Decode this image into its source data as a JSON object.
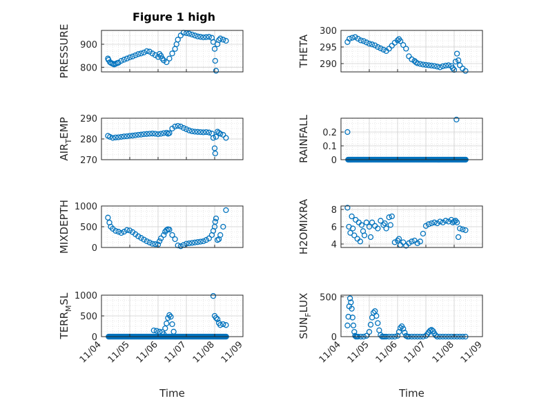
{
  "figure": {
    "title": "Figure 1 high",
    "marker_color": "#0072BD",
    "grid": "on (major + minor dotted)"
  },
  "chart_data": [
    {
      "type": "scatter",
      "title": "Figure 1 high",
      "ylabel": "PRESSURE",
      "ylim": [
        780,
        960
      ],
      "yticks": [
        800,
        900
      ],
      "xlim": [
        0,
        5
      ],
      "xticks_visible": false,
      "x": [
        0.23,
        0.25,
        0.3,
        0.35,
        0.4,
        0.45,
        0.5,
        0.55,
        0.6,
        0.7,
        0.8,
        0.9,
        1.0,
        1.1,
        1.2,
        1.3,
        1.4,
        1.5,
        1.6,
        1.7,
        1.8,
        1.9,
        2.0,
        2.05,
        2.1,
        2.15,
        2.2,
        2.3,
        2.4,
        2.5,
        2.6,
        2.65,
        2.7,
        2.8,
        2.9,
        3.0,
        3.1,
        3.2,
        3.3,
        3.4,
        3.5,
        3.6,
        3.7,
        3.8,
        3.9,
        3.95,
        4.0,
        4.02,
        4.05,
        4.1,
        4.15,
        4.2,
        4.3,
        4.4
      ],
      "y": [
        838,
        832,
        822,
        818,
        815,
        812,
        815,
        818,
        820,
        828,
        833,
        838,
        843,
        847,
        852,
        857,
        860,
        864,
        870,
        868,
        860,
        853,
        845,
        858,
        850,
        838,
        830,
        822,
        838,
        860,
        880,
        900,
        920,
        938,
        950,
        948,
        946,
        942,
        938,
        934,
        932,
        930,
        931,
        932,
        928,
        910,
        880,
        828,
        785,
        900,
        918,
        925,
        920,
        915
      ]
    },
    {
      "type": "scatter",
      "ylabel": "THETA",
      "ylim": [
        287.5,
        300
      ],
      "yticks": [
        290,
        295,
        300
      ],
      "xlim": [
        0,
        5
      ],
      "xticks_visible": false,
      "x": [
        0.23,
        0.3,
        0.4,
        0.5,
        0.6,
        0.7,
        0.8,
        0.9,
        1.0,
        1.1,
        1.2,
        1.3,
        1.4,
        1.5,
        1.6,
        1.7,
        1.8,
        1.9,
        2.0,
        2.05,
        2.1,
        2.2,
        2.3,
        2.4,
        2.5,
        2.6,
        2.65,
        2.7,
        2.8,
        2.9,
        3.0,
        3.1,
        3.2,
        3.3,
        3.4,
        3.5,
        3.6,
        3.7,
        3.8,
        3.9,
        3.95,
        4.0,
        4.05,
        4.1,
        4.15,
        4.2,
        4.3,
        4.4
      ],
      "y": [
        296.5,
        297.5,
        297.8,
        298,
        297.5,
        297,
        296.8,
        296.4,
        296,
        295.8,
        295.5,
        295,
        294.6,
        294.2,
        293.8,
        294.5,
        295.4,
        296.3,
        297,
        297.4,
        296.8,
        295.6,
        294.5,
        292.2,
        291.3,
        290.8,
        290.4,
        290.1,
        289.9,
        289.7,
        289.6,
        289.5,
        289.4,
        289.3,
        289.1,
        288.9,
        289.2,
        289.4,
        289.5,
        289.3,
        288.6,
        288.1,
        290.6,
        293,
        291,
        289.5,
        288.5,
        287.8
      ]
    },
    {
      "type": "scatter",
      "ylabel": "AIR_TEMP",
      "ylim": [
        270,
        290
      ],
      "yticks": [
        270,
        280,
        290
      ],
      "xlim": [
        0,
        5
      ],
      "xticks_visible": false,
      "x": [
        0.23,
        0.3,
        0.4,
        0.5,
        0.6,
        0.7,
        0.8,
        0.9,
        1.0,
        1.1,
        1.2,
        1.3,
        1.4,
        1.5,
        1.6,
        1.7,
        1.8,
        1.9,
        2.0,
        2.1,
        2.2,
        2.3,
        2.35,
        2.4,
        2.5,
        2.6,
        2.7,
        2.8,
        2.9,
        3.0,
        3.1,
        3.2,
        3.3,
        3.4,
        3.5,
        3.6,
        3.7,
        3.8,
        3.9,
        3.95,
        4.0,
        4.02,
        4.05,
        4.1,
        4.15,
        4.2,
        4.3,
        4.4
      ],
      "y": [
        281.5,
        281,
        280.5,
        280.7,
        280.8,
        281,
        281.2,
        281.3,
        281.5,
        281.6,
        281.8,
        282,
        282.1,
        282.3,
        282.4,
        282.5,
        282.6,
        282.5,
        282.3,
        282.5,
        282.8,
        283,
        282.5,
        282.8,
        285,
        286,
        286.3,
        286,
        285.3,
        284.7,
        284.1,
        283.7,
        283.5,
        283.4,
        283.3,
        283.2,
        283.3,
        283.1,
        282.6,
        280.5,
        275.5,
        273,
        281,
        283.5,
        283,
        282.5,
        282,
        280.5
      ]
    },
    {
      "type": "scatter",
      "ylabel": "RAINFALL",
      "ylim": [
        0,
        0.3
      ],
      "yticks": [
        0,
        0.1,
        0.2
      ],
      "ytick_labels": [
        "0",
        "0.1",
        "0.2"
      ],
      "xlim": [
        0,
        5
      ],
      "xticks_visible": false,
      "x_zero_range": [
        0.25,
        4.42
      ],
      "x": [
        0.23,
        4.08
      ],
      "y": [
        0.2,
        0.29
      ]
    },
    {
      "type": "scatter",
      "ylabel": "MIXDEPTH",
      "ylim": [
        0,
        1000
      ],
      "yticks": [
        0,
        500,
        1000
      ],
      "xlim": [
        0,
        5
      ],
      "xticks_visible": false,
      "x": [
        0.23,
        0.28,
        0.33,
        0.4,
        0.5,
        0.6,
        0.7,
        0.8,
        0.9,
        1.0,
        1.1,
        1.2,
        1.3,
        1.4,
        1.5,
        1.6,
        1.7,
        1.8,
        1.9,
        2.0,
        2.05,
        2.1,
        2.2,
        2.25,
        2.3,
        2.35,
        2.4,
        2.5,
        2.6,
        2.7,
        2.8,
        2.9,
        3.0,
        3.1,
        3.2,
        3.3,
        3.4,
        3.5,
        3.6,
        3.7,
        3.8,
        3.9,
        3.95,
        4.0,
        4.02,
        4.05,
        4.1,
        4.15,
        4.2,
        4.3,
        4.4
      ],
      "y": [
        720,
        600,
        500,
        450,
        400,
        380,
        350,
        380,
        420,
        410,
        370,
        320,
        270,
        230,
        190,
        150,
        120,
        90,
        80,
        70,
        150,
        220,
        300,
        380,
        420,
        440,
        430,
        300,
        200,
        50,
        30,
        60,
        90,
        100,
        110,
        120,
        130,
        140,
        150,
        180,
        220,
        300,
        400,
        500,
        620,
        700,
        180,
        200,
        300,
        500,
        900
      ]
    },
    {
      "type": "scatter",
      "ylabel": "H2OMIXRA",
      "ylim": [
        3.6,
        8.4
      ],
      "yticks": [
        4,
        6,
        8
      ],
      "xlim": [
        0,
        5
      ],
      "xticks_visible": false,
      "x": [
        0.23,
        0.28,
        0.33,
        0.38,
        0.42,
        0.47,
        0.52,
        0.58,
        0.63,
        0.68,
        0.73,
        0.78,
        0.83,
        0.9,
        1.0,
        1.05,
        1.1,
        1.2,
        1.3,
        1.4,
        1.5,
        1.55,
        1.6,
        1.7,
        1.75,
        1.8,
        1.9,
        2.0,
        2.05,
        2.1,
        2.2,
        2.3,
        2.4,
        2.5,
        2.6,
        2.7,
        2.8,
        2.9,
        3.0,
        3.1,
        3.2,
        3.3,
        3.4,
        3.5,
        3.6,
        3.7,
        3.8,
        3.9,
        3.95,
        4.0,
        4.05,
        4.1,
        4.15,
        4.2,
        4.3,
        4.4
      ],
      "y": [
        8.2,
        6,
        5.3,
        7.2,
        5.8,
        5,
        6.8,
        4.6,
        6.5,
        4.3,
        6.2,
        5.5,
        5,
        6.5,
        6,
        4.8,
        6.5,
        6.1,
        5.8,
        6.7,
        6.2,
        6.4,
        5.8,
        7.1,
        6.2,
        7.2,
        4.2,
        4.4,
        4.6,
        3.9,
        4.2,
        3.8,
        4.1,
        4.3,
        4.4,
        4.1,
        4.3,
        5.2,
        6.1,
        6.3,
        6.4,
        6.5,
        6.4,
        6.6,
        6.5,
        6.7,
        6.6,
        6.8,
        6.5,
        6.6,
        6.7,
        6.5,
        4.8,
        5.8,
        5.7,
        5.6
      ]
    },
    {
      "type": "scatter",
      "ylabel": "TERR_MSL",
      "ylim": [
        0,
        1000
      ],
      "yticks": [
        0,
        500,
        1000
      ],
      "xlim": [
        0,
        5
      ],
      "xticks_visible": true,
      "xtick_labels": [
        "11/04",
        "11/05",
        "11/06",
        "11/07",
        "11/08",
        "11/09"
      ],
      "xlabel": "Time",
      "x_zero_range": [
        0.25,
        4.42
      ],
      "x": [
        1.85,
        1.95,
        2.05,
        2.15,
        2.2,
        2.25,
        2.3,
        2.35,
        2.4,
        2.45,
        2.5,
        2.55,
        3.95,
        4.0,
        4.05,
        4.1,
        4.15,
        4.2,
        4.3,
        4.4
      ],
      "y": [
        150,
        140,
        120,
        110,
        60,
        200,
        320,
        450,
        520,
        480,
        300,
        120,
        980,
        500,
        450,
        420,
        330,
        280,
        300,
        280
      ]
    },
    {
      "type": "scatter",
      "ylabel": "SUN_FLUX",
      "ylim": [
        0,
        520
      ],
      "yticks": [
        0,
        500
      ],
      "xlim": [
        0,
        5
      ],
      "xticks_visible": true,
      "xtick_labels": [
        "11/04",
        "11/05",
        "11/06",
        "11/07",
        "11/08",
        "11/09"
      ],
      "xlabel": "Time",
      "x": [
        0.23,
        0.26,
        0.29,
        0.32,
        0.35,
        0.38,
        0.41,
        0.44,
        0.47,
        0.5,
        0.53,
        0.56,
        0.6,
        0.7,
        0.8,
        0.9,
        1.0,
        1.05,
        1.1,
        1.15,
        1.2,
        1.25,
        1.3,
        1.35,
        1.4,
        1.45,
        1.5,
        1.55,
        1.6,
        1.7,
        1.8,
        1.9,
        2.0,
        2.05,
        2.1,
        2.15,
        2.2,
        2.25,
        2.3,
        2.35,
        2.4,
        2.5,
        2.6,
        2.7,
        2.8,
        2.9,
        3.0,
        3.05,
        3.1,
        3.15,
        3.2,
        3.25,
        3.3,
        3.35,
        3.4,
        3.5,
        3.6,
        3.7,
        3.8,
        3.9,
        4.0,
        4.1,
        4.2,
        4.3,
        4.4
      ],
      "y": [
        140,
        250,
        380,
        480,
        430,
        350,
        240,
        140,
        60,
        10,
        0,
        0,
        0,
        0,
        0,
        10,
        60,
        150,
        240,
        300,
        320,
        260,
        170,
        80,
        20,
        0,
        0,
        0,
        0,
        0,
        0,
        0,
        10,
        60,
        110,
        130,
        100,
        50,
        10,
        0,
        0,
        0,
        0,
        0,
        0,
        0,
        10,
        30,
        55,
        75,
        85,
        70,
        40,
        15,
        0,
        0,
        0,
        0,
        0,
        0,
        0,
        0,
        0,
        0,
        0
      ]
    }
  ]
}
